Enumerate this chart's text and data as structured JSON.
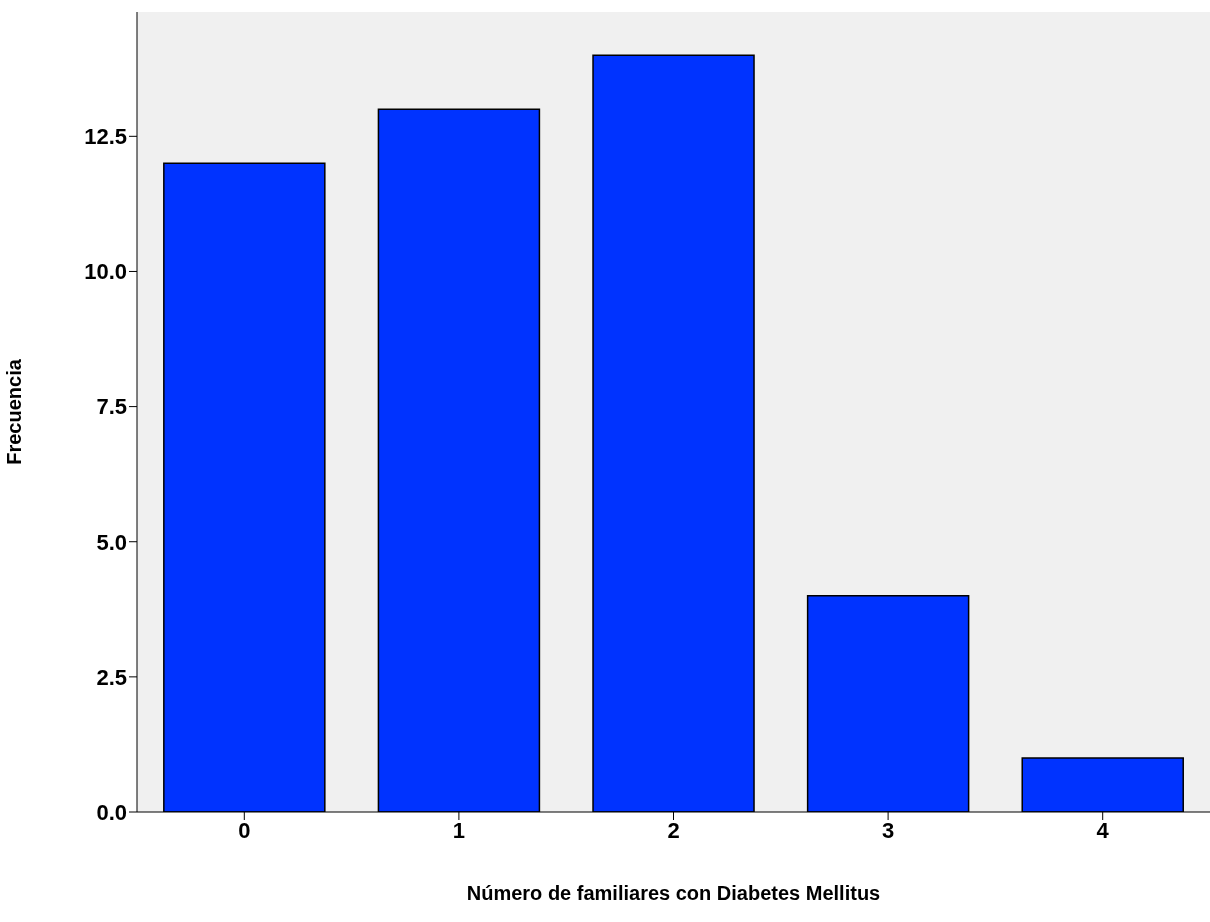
{
  "chart_data": {
    "type": "bar",
    "xlabel": "Número de familiares con Diabetes Mellitus",
    "ylabel": "Frecuencia",
    "categories": [
      "0",
      "1",
      "2",
      "3",
      "4"
    ],
    "values": [
      12,
      13,
      14,
      4,
      1
    ],
    "color": "#0033ff",
    "ylim": [
      0,
      14.8
    ],
    "yticks": [
      {
        "value": 0,
        "label": "0.0"
      },
      {
        "value": 2.5,
        "label": "2.5"
      },
      {
        "value": 5,
        "label": "5.0"
      },
      {
        "value": 7.5,
        "label": "7.5"
      },
      {
        "value": 10,
        "label": "10.0"
      },
      {
        "value": 12.5,
        "label": "12.5"
      }
    ],
    "grid": false
  }
}
